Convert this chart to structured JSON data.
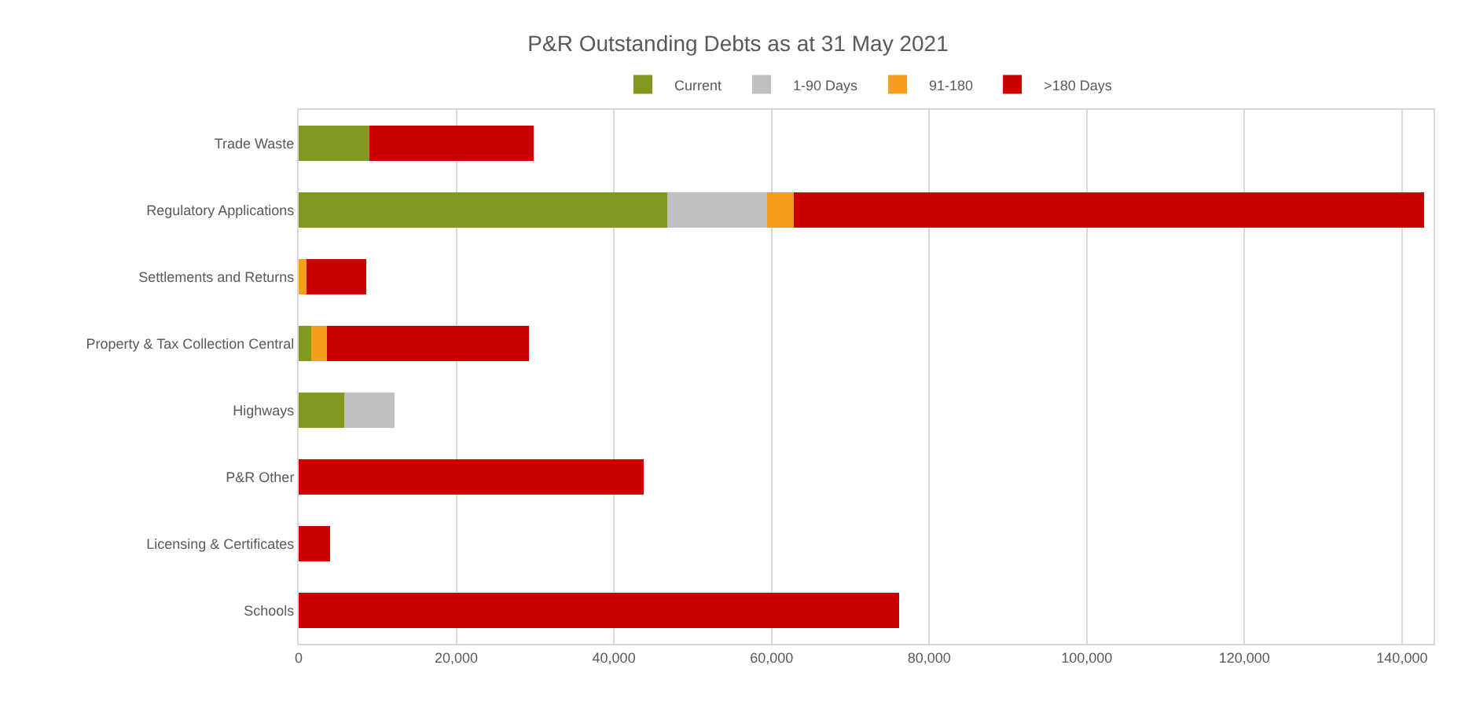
{
  "chart_data": {
    "type": "bar",
    "orientation": "horizontal",
    "stacked": true,
    "title": "P&R Outstanding Debts as at 31 May 2021",
    "categories": [
      "Trade Waste",
      "Regulatory Applications",
      "Settlements and Returns",
      "Property & Tax Collection Central",
      "Highways",
      "P&R Other",
      "Licensing & Certificates",
      "Schools"
    ],
    "series": [
      {
        "name": "Current",
        "color": "#7f9a1e",
        "values": [
          9000,
          46800,
          null,
          1600,
          5800,
          null,
          null,
          null
        ]
      },
      {
        "name": "1-90 Days",
        "color": "#c0c0c0",
        "values": [
          null,
          12600,
          null,
          null,
          6400,
          null,
          null,
          null
        ]
      },
      {
        "name": "91-180",
        "color": "#f59e1b",
        "values": [
          null,
          3400,
          1000,
          2000,
          null,
          null,
          null,
          null
        ]
      },
      {
        "name": ">180 Days",
        "color": "#cc0000",
        "values": [
          20800,
          80000,
          7600,
          25600,
          null,
          43800,
          4000,
          76200
        ]
      }
    ],
    "xlim": [
      0,
      144000
    ],
    "xticks": [
      0,
      {
        "value": 20000,
        "label": "20,000"
      },
      {
        "value": 40000,
        "label": "40,000"
      },
      {
        "value": 60000,
        "label": "60,000"
      },
      {
        "value": 80000,
        "label": "80,000"
      },
      {
        "value": 100000,
        "label": "100,000"
      },
      {
        "value": 120000,
        "label": "120,000"
      },
      {
        "value": 140000,
        "label": "140,000"
      }
    ],
    "grid": "x",
    "legend": "top"
  }
}
